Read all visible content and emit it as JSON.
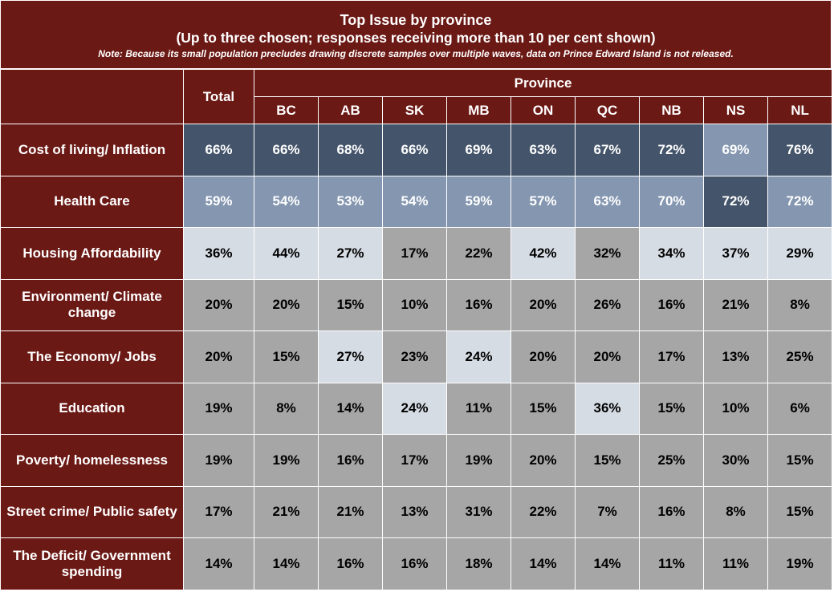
{
  "title": {
    "line1": "Top Issue by province",
    "line2": "(Up to three chosen; responses receiving more than 10 per cent shown)",
    "note": "Note: Because its small population precludes drawing discrete samples over multiple waves, data on Prince Edward Island is not released."
  },
  "header": {
    "total": "Total",
    "province_group": "Province",
    "provinces": [
      "BC",
      "AB",
      "SK",
      "MB",
      "ON",
      "QC",
      "NB",
      "NS",
      "NL"
    ]
  },
  "colors": {
    "header_bg": "#6B1915",
    "dark": "#44546A",
    "mid": "#8496B0",
    "light": "#D6DCE4",
    "grey": "#A6A6A6"
  },
  "chart_data": {
    "type": "table",
    "columns": [
      "Total",
      "BC",
      "AB",
      "SK",
      "MB",
      "ON",
      "QC",
      "NB",
      "NS",
      "NL"
    ],
    "rows": [
      {
        "label": "Cost of living/ Inflation",
        "values": [
          "66%",
          "66%",
          "68%",
          "66%",
          "69%",
          "63%",
          "67%",
          "72%",
          "69%",
          "76%"
        ],
        "shades": [
          "dark",
          "dark",
          "dark",
          "dark",
          "dark",
          "dark",
          "dark",
          "dark",
          "mid",
          "dark"
        ]
      },
      {
        "label": "Health Care",
        "values": [
          "59%",
          "54%",
          "53%",
          "54%",
          "59%",
          "57%",
          "63%",
          "70%",
          "72%",
          "72%"
        ],
        "shades": [
          "mid",
          "mid",
          "mid",
          "mid",
          "mid",
          "mid",
          "mid",
          "mid",
          "dark",
          "mid"
        ]
      },
      {
        "label": "Housing Affordability",
        "values": [
          "36%",
          "44%",
          "27%",
          "17%",
          "22%",
          "42%",
          "32%",
          "34%",
          "37%",
          "29%"
        ],
        "shades": [
          "light",
          "light",
          "light",
          "grey",
          "grey",
          "light",
          "grey",
          "light",
          "light",
          "light"
        ]
      },
      {
        "label": "Environment/ Climate change",
        "values": [
          "20%",
          "20%",
          "15%",
          "10%",
          "16%",
          "20%",
          "26%",
          "16%",
          "21%",
          "8%"
        ],
        "shades": [
          "grey",
          "grey",
          "grey",
          "grey",
          "grey",
          "grey",
          "grey",
          "grey",
          "grey",
          "grey"
        ]
      },
      {
        "label": "The Economy/ Jobs",
        "values": [
          "20%",
          "15%",
          "27%",
          "23%",
          "24%",
          "20%",
          "20%",
          "17%",
          "13%",
          "25%"
        ],
        "shades": [
          "grey",
          "grey",
          "light",
          "grey",
          "light",
          "grey",
          "grey",
          "grey",
          "grey",
          "grey"
        ]
      },
      {
        "label": "Education",
        "values": [
          "19%",
          "8%",
          "14%",
          "24%",
          "11%",
          "15%",
          "36%",
          "15%",
          "10%",
          "6%"
        ],
        "shades": [
          "grey",
          "grey",
          "grey",
          "light",
          "grey",
          "grey",
          "light",
          "grey",
          "grey",
          "grey"
        ]
      },
      {
        "label": "Poverty/ homelessness",
        "values": [
          "19%",
          "19%",
          "16%",
          "17%",
          "19%",
          "20%",
          "15%",
          "25%",
          "30%",
          "15%"
        ],
        "shades": [
          "grey",
          "grey",
          "grey",
          "grey",
          "grey",
          "grey",
          "grey",
          "grey",
          "grey",
          "grey"
        ]
      },
      {
        "label": "Street crime/ Public safety",
        "values": [
          "17%",
          "21%",
          "21%",
          "13%",
          "31%",
          "22%",
          "7%",
          "16%",
          "8%",
          "15%"
        ],
        "shades": [
          "grey",
          "grey",
          "grey",
          "grey",
          "grey",
          "grey",
          "grey",
          "grey",
          "grey",
          "grey"
        ]
      },
      {
        "label": "The Deficit/ Government spending",
        "values": [
          "14%",
          "14%",
          "16%",
          "16%",
          "18%",
          "14%",
          "14%",
          "11%",
          "11%",
          "19%"
        ],
        "shades": [
          "grey",
          "grey",
          "grey",
          "grey",
          "grey",
          "grey",
          "grey",
          "grey",
          "grey",
          "grey"
        ]
      }
    ]
  }
}
